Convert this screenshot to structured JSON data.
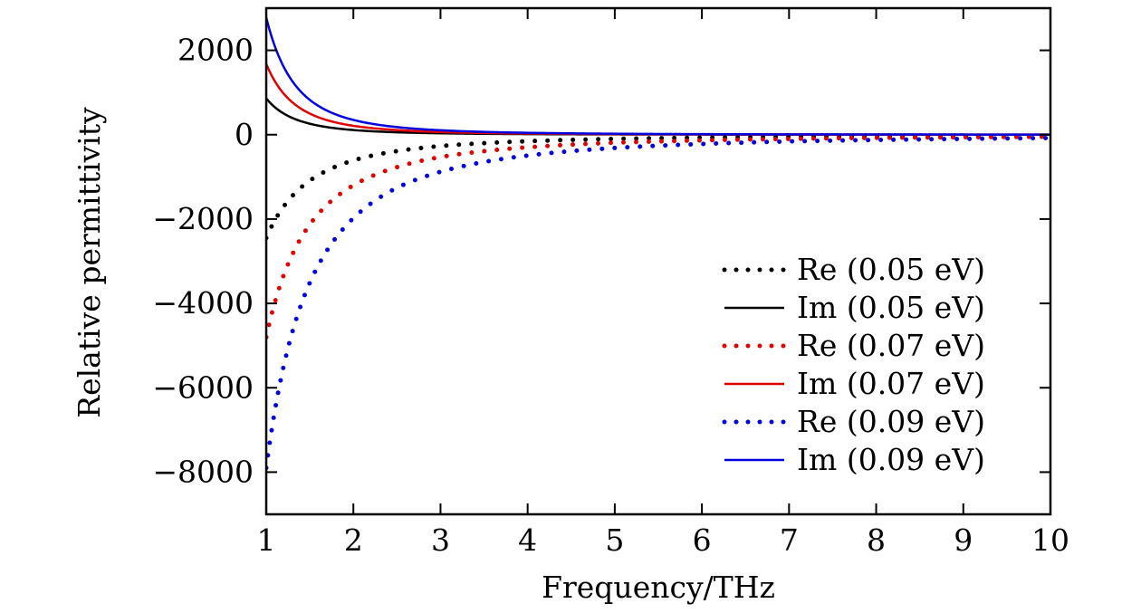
{
  "chart_data": {
    "type": "line",
    "title": "",
    "xlabel": "Frequency/THz",
    "ylabel": "Relative permittivity",
    "xlim": [
      1,
      10
    ],
    "ylim": [
      -9000,
      3000
    ],
    "xticks": [
      1,
      2,
      3,
      4,
      5,
      6,
      7,
      8,
      9,
      10
    ],
    "yticks": [
      2000,
      0,
      -2000,
      -4000,
      -6000,
      -8000
    ],
    "xtick_labels": [
      "1",
      "2",
      "3",
      "4",
      "5",
      "6",
      "7",
      "8",
      "9",
      "10"
    ],
    "ytick_labels": [
      "2000",
      "0",
      "−2000",
      "−4000",
      "−6000",
      "−8000"
    ],
    "grid": false,
    "legend_position": "bottom-right",
    "series": [
      {
        "name": "Re (0.05 eV)",
        "style": "dotted",
        "color": "#000000",
        "x": [
          1,
          1.5,
          2,
          2.5,
          3,
          4,
          5,
          6,
          7,
          8,
          9,
          10
        ],
        "y": [
          -2450,
          -1090,
          -610,
          -390,
          -270,
          -155,
          -100,
          -70,
          -50,
          -38,
          -30,
          -25
        ]
      },
      {
        "name": "Im (0.05 eV)",
        "style": "solid",
        "color": "#000000",
        "x": [
          1,
          1.5,
          2,
          2.5,
          3,
          4,
          5,
          6,
          7,
          8,
          9,
          10
        ],
        "y": [
          860,
          260,
          110,
          57,
          33,
          14,
          7,
          4,
          3,
          2,
          1,
          1
        ]
      },
      {
        "name": "Re (0.07 eV)",
        "style": "dotted",
        "color": "#e00000",
        "x": [
          1,
          1.5,
          2,
          2.5,
          3,
          4,
          5,
          6,
          7,
          8,
          9,
          10
        ],
        "y": [
          -4800,
          -2130,
          -1200,
          -770,
          -530,
          -300,
          -190,
          -135,
          -100,
          -75,
          -60,
          -50
        ]
      },
      {
        "name": "Im (0.07 eV)",
        "style": "solid",
        "color": "#e00000",
        "x": [
          1,
          1.5,
          2,
          2.5,
          3,
          4,
          5,
          6,
          7,
          8,
          9,
          10
        ],
        "y": [
          1680,
          500,
          210,
          110,
          63,
          27,
          14,
          8,
          5,
          3,
          2,
          2
        ]
      },
      {
        "name": "Re (0.09 eV)",
        "style": "dotted",
        "color": "#0000e0",
        "x": [
          1,
          1.5,
          2,
          2.5,
          3,
          4,
          5,
          6,
          7,
          8,
          9,
          10
        ],
        "y": [
          -7900,
          -3510,
          -1980,
          -1260,
          -880,
          -495,
          -315,
          -220,
          -160,
          -125,
          -100,
          -80
        ]
      },
      {
        "name": "Im (0.09 eV)",
        "style": "solid",
        "color": "#0000e0",
        "x": [
          1,
          1.5,
          2,
          2.5,
          3,
          4,
          5,
          6,
          7,
          8,
          9,
          10
        ],
        "y": [
          2780,
          825,
          350,
          180,
          105,
          45,
          23,
          13,
          8,
          6,
          4,
          3
        ]
      }
    ]
  }
}
